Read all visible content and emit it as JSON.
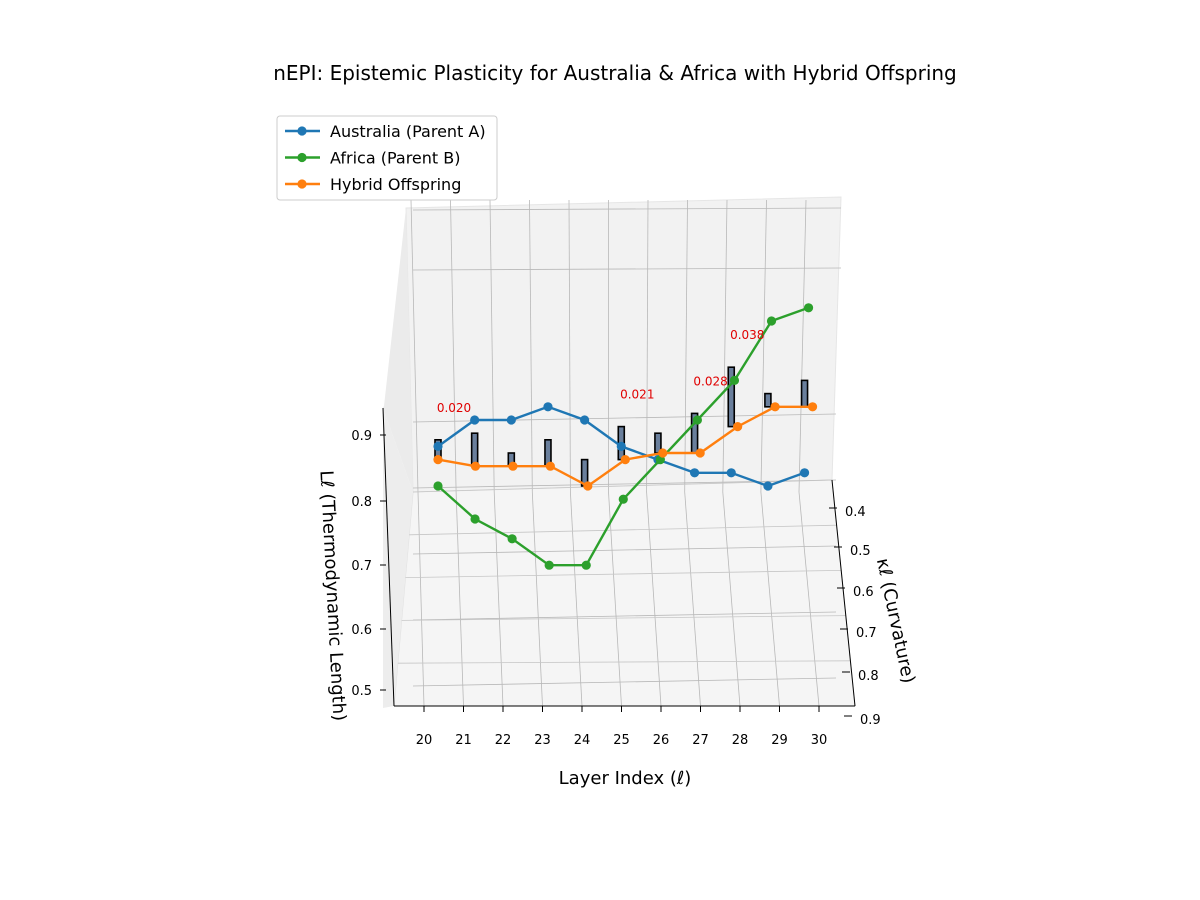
{
  "chart_data": {
    "type": "line",
    "title": "nEPI: Epistemic Plasticity for Australia & Africa with Hybrid Offspring",
    "xlabel": "Layer Index (ℓ)",
    "ylabel": "κℓ (Curvature)",
    "zlabel": "Lℓ (Thermodynamic Length)",
    "x": [
      20,
      21,
      22,
      23,
      24,
      25,
      26,
      27,
      28,
      29,
      30
    ],
    "x_ticks": [
      "20",
      "21",
      "22",
      "23",
      "24",
      "25",
      "26",
      "27",
      "28",
      "29",
      "30"
    ],
    "y_ticks": [
      "0.4",
      "0.5",
      "0.6",
      "0.7",
      "0.8",
      "0.9"
    ],
    "z_ticks": [
      "0.5",
      "0.6",
      "0.7",
      "0.8",
      "0.9"
    ],
    "grid": true,
    "legend_position": "upper-left",
    "series": [
      {
        "name": "Australia (Parent A)",
        "color": "#1f77b4",
        "z_values": [
          0.86,
          0.9,
          0.9,
          0.92,
          0.9,
          0.86,
          0.84,
          0.82,
          0.82,
          0.8,
          0.82
        ]
      },
      {
        "name": "Africa (Parent B)",
        "color": "#2ca02c",
        "z_values": [
          0.8,
          0.75,
          0.72,
          0.68,
          0.68,
          0.78,
          0.84,
          0.9,
          0.96,
          1.05,
          1.07
        ]
      },
      {
        "name": "Hybrid Offspring",
        "color": "#ff7f0e",
        "z_values": [
          0.84,
          0.83,
          0.83,
          0.83,
          0.8,
          0.84,
          0.85,
          0.85,
          0.89,
          0.92,
          0.92
        ]
      }
    ],
    "plasticity_bars": {
      "color": "#6a7f9c",
      "z_heights": [
        0.03,
        0.05,
        0.02,
        0.04,
        0.04,
        0.05,
        0.03,
        0.06,
        0.09,
        0.02,
        0.04
      ]
    },
    "annotations": [
      {
        "layer": 20,
        "text": "0.020"
      },
      {
        "layer": 25,
        "text": "0.021"
      },
      {
        "layer": 27,
        "text": "0.028"
      },
      {
        "layer": 28,
        "text": "0.038"
      }
    ]
  }
}
